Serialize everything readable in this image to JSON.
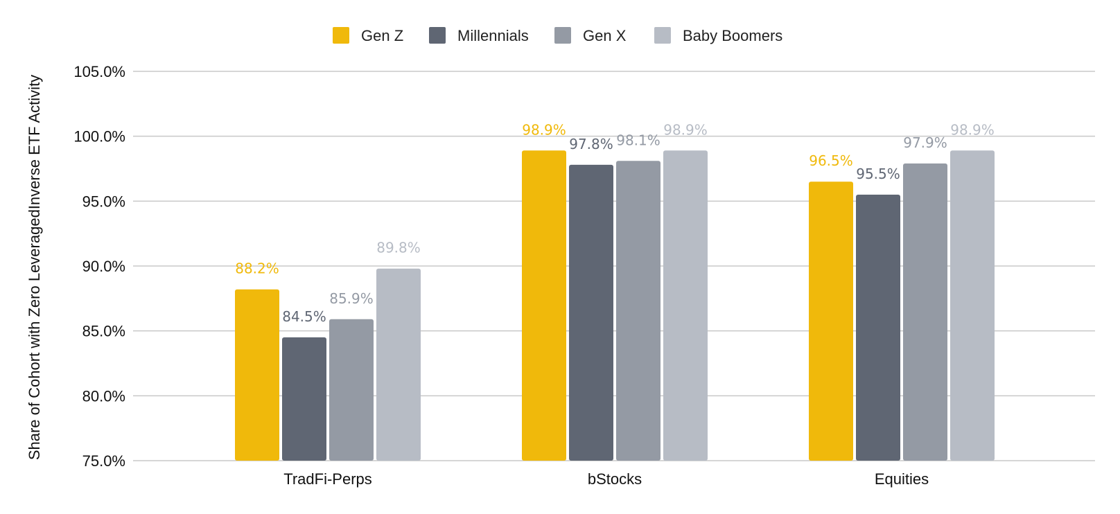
{
  "chart_data": {
    "type": "bar",
    "title": "",
    "xlabel": "",
    "ylabel": "Share of Cohort with Zero LeveragedInverse ETF Activity",
    "categories": [
      "TradFi-Perps",
      "bStocks",
      "Equities"
    ],
    "series": [
      {
        "name": "Gen Z",
        "color": "#F0B90B",
        "values": [
          88.2,
          98.9,
          96.5
        ],
        "labels": [
          "88.2%",
          "98.9%",
          "96.5%"
        ]
      },
      {
        "name": "Millennials",
        "color": "#5F6673",
        "values": [
          84.5,
          97.8,
          95.5
        ],
        "labels": [
          "84.5%",
          "97.8%",
          "95.5%"
        ]
      },
      {
        "name": "Gen X",
        "color": "#949AA4",
        "values": [
          85.9,
          98.1,
          97.9
        ],
        "labels": [
          "85.9%",
          "98.1%",
          "97.9%"
        ]
      },
      {
        "name": "Baby Boomers",
        "color": "#B7BCC5",
        "values": [
          89.8,
          98.9,
          98.9
        ],
        "labels": [
          "89.8%",
          "98.9%",
          "98.9%"
        ]
      }
    ],
    "ylim": [
      75,
      105
    ],
    "yticks": [
      "75.0%",
      "80.0%",
      "85.0%",
      "90.0%",
      "95.0%",
      "100.0%",
      "105.0%"
    ],
    "grid": true,
    "legend_position": "top-center"
  }
}
